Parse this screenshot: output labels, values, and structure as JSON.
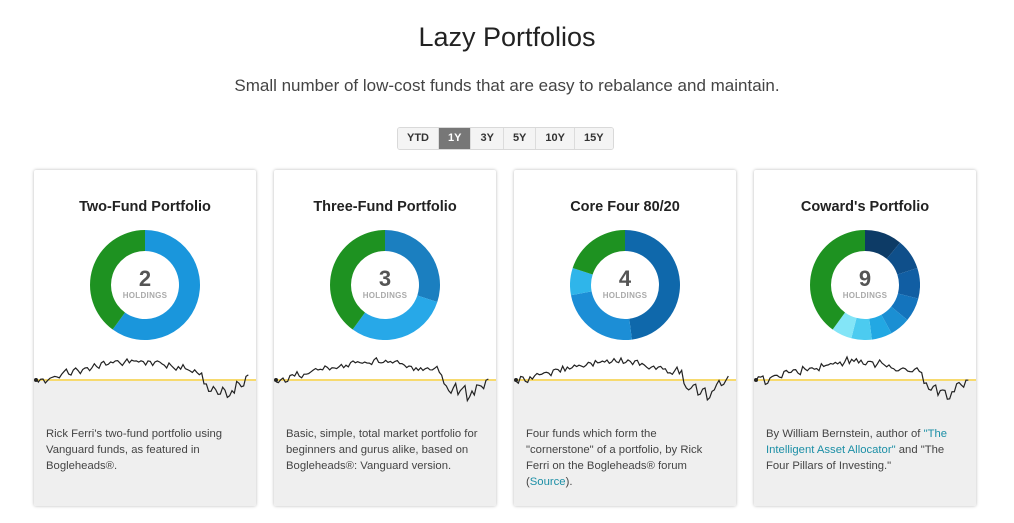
{
  "header": {
    "title": "Lazy Portfolios",
    "subtitle": "Small number of low-cost funds that are easy to rebalance and maintain."
  },
  "range_selector": {
    "options": [
      "YTD",
      "1Y",
      "3Y",
      "5Y",
      "10Y",
      "15Y"
    ],
    "selected": "1Y"
  },
  "holdings_label": "HOLDINGS",
  "cards": [
    {
      "title": "Two-Fund Portfolio",
      "holdings": "2",
      "allocation": [
        {
          "value": 60,
          "color": "#1a96dc"
        },
        {
          "value": 40,
          "color": "#1e9221"
        }
      ],
      "description": "Rick Ferri's two-fund portfolio using Vanguard funds, as featured in Bogleheads®."
    },
    {
      "title": "Three-Fund Portfolio",
      "holdings": "3",
      "allocation": [
        {
          "value": 30,
          "color": "#1b7fc0"
        },
        {
          "value": 30,
          "color": "#27a8e8"
        },
        {
          "value": 40,
          "color": "#1e9221"
        }
      ],
      "description": "Basic, simple, total market portfolio for beginners and gurus alike, based on Bogleheads®: Vanguard version."
    },
    {
      "title": "Core Four 80/20",
      "holdings": "4",
      "allocation": [
        {
          "value": 48,
          "color": "#0f68ab"
        },
        {
          "value": 24,
          "color": "#1c8ed6"
        },
        {
          "value": 8,
          "color": "#2fb5ea"
        },
        {
          "value": 20,
          "color": "#1e9221"
        }
      ],
      "description_parts": [
        {
          "text": "Four funds which form the \"cornerstone\" of a portfolio, by Rick Ferri on the Bogleheads® forum ("
        },
        {
          "text": "Source",
          "link": true
        },
        {
          "text": ")."
        }
      ]
    },
    {
      "title": "Coward's Portfolio",
      "holdings": "9",
      "allocation": [
        {
          "value": 11,
          "color": "#0d3b66"
        },
        {
          "value": 9,
          "color": "#0f4f8a"
        },
        {
          "value": 9,
          "color": "#115ea3"
        },
        {
          "value": 7,
          "color": "#1474bd"
        },
        {
          "value": 6,
          "color": "#1b8fd3"
        },
        {
          "value": 6,
          "color": "#22a8e3"
        },
        {
          "value": 6,
          "color": "#4ccbf0"
        },
        {
          "value": 6,
          "color": "#83e5f7"
        },
        {
          "value": 40,
          "color": "#1e9221"
        }
      ],
      "description_parts": [
        {
          "text": "By William Bernstein, author of "
        },
        {
          "text": "\"The Intelligent Asset Allocator\"",
          "link": true
        },
        {
          "text": " and \"The Four Pillars of Investing.\""
        }
      ]
    }
  ],
  "colors": {
    "baseline": "#f2c318",
    "sparkline": "#222222",
    "link": "#1c8fa6"
  }
}
